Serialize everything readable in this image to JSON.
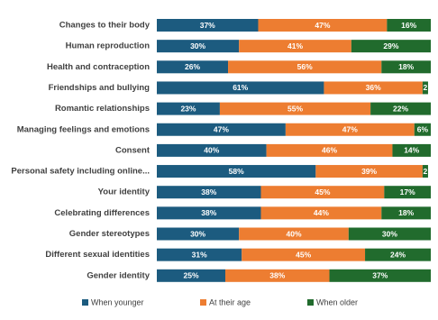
{
  "chart_data": {
    "type": "stacked-bar-horizontal",
    "categories": [
      "Changes to their body",
      "Human reproduction",
      "Health and contraception",
      "Friendships and bullying",
      "Romantic relationships",
      "Managing feelings and emotions",
      "Consent",
      "Personal safety including online...",
      "Your identity",
      "Celebrating differences",
      "Gender stereotypes",
      "Different sexual identities",
      "Gender identity"
    ],
    "series": [
      {
        "name": "When younger",
        "color": "#1c5b7f",
        "values": [
          37,
          30,
          26,
          61,
          23,
          47,
          40,
          58,
          38,
          38,
          30,
          31,
          25
        ],
        "value_labels": [
          "37%",
          "30%",
          "26%",
          "61%",
          "23%",
          "47%",
          "40%",
          "58%",
          "38%",
          "38%",
          "30%",
          "31%",
          "25%"
        ]
      },
      {
        "name": "At their age",
        "color": "#ed7d31",
        "values": [
          47,
          41,
          56,
          36,
          55,
          47,
          46,
          39,
          45,
          44,
          40,
          45,
          38
        ],
        "value_labels": [
          "47%",
          "41%",
          "56%",
          "36%",
          "55%",
          "47%",
          "46%",
          "39%",
          "45%",
          "44%",
          "40%",
          "45%",
          "38%"
        ]
      },
      {
        "name": "When older",
        "color": "#216b2d",
        "values": [
          16,
          29,
          18,
          2,
          22,
          6,
          14,
          2,
          17,
          18,
          30,
          24,
          37
        ],
        "value_labels": [
          "16%",
          "29%",
          "18%",
          "2",
          "22%",
          "6%",
          "14%",
          "2",
          "17%",
          "18%",
          "30%",
          "24%",
          "37%"
        ]
      }
    ],
    "xlim": [
      0,
      100
    ],
    "legend": "bottom"
  }
}
